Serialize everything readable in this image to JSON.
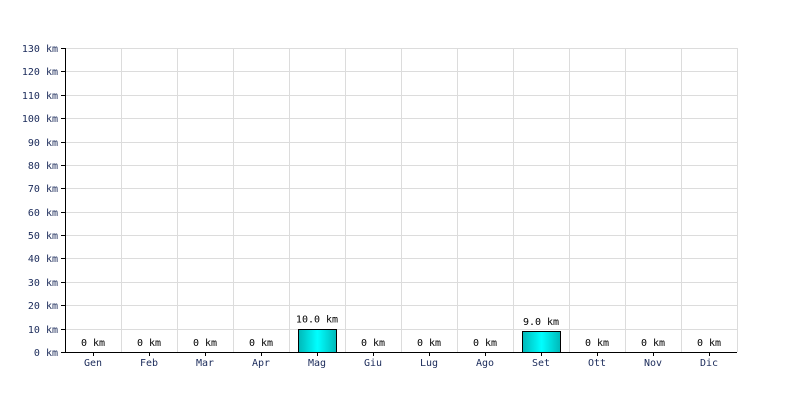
{
  "chart_data": {
    "type": "bar",
    "categories": [
      "Gen",
      "Feb",
      "Mar",
      "Apr",
      "Mag",
      "Giu",
      "Lug",
      "Ago",
      "Set",
      "Ott",
      "Nov",
      "Dic"
    ],
    "values": [
      0,
      0,
      0,
      0,
      10.0,
      0,
      0,
      0,
      9.0,
      0,
      0,
      0
    ],
    "data_labels": [
      "0 km",
      "0 km",
      "0 km",
      "0 km",
      "10.0 km",
      "0 km",
      "0 km",
      "0 km",
      "9.0 km",
      "0 km",
      "0 km",
      "0 km"
    ],
    "unit": "km",
    "ylim": [
      0,
      130
    ],
    "y_ticks": [
      0,
      10,
      20,
      30,
      40,
      50,
      60,
      70,
      80,
      90,
      100,
      110,
      120,
      130
    ],
    "y_tick_labels": [
      "0 km",
      "10 km",
      "20 km",
      "30 km",
      "40 km",
      "50 km",
      "60 km",
      "70 km",
      "80 km",
      "90 km",
      "100 km",
      "110 km",
      "120 km",
      "130 km"
    ],
    "grid": true,
    "legend": "none",
    "colors": {
      "bar_dark": "#00b8b8",
      "bar_light": "#00ffff",
      "bar_edge": "#000000",
      "grid": "#dcdcdc",
      "tick_text": "#1a2a5a"
    }
  }
}
